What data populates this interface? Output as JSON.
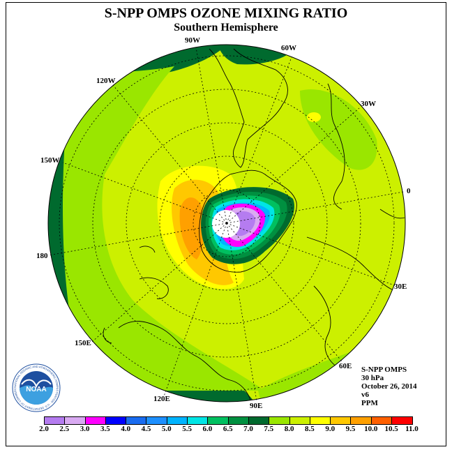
{
  "title": "S-NPP OMPS OZONE MIXING RATIO",
  "subtitle": "Southern Hemisphere",
  "longitude_labels": [
    "90W",
    "60W",
    "120W",
    "30W",
    "150W",
    "0",
    "180",
    "30E",
    "150E",
    "60E",
    "120E",
    "90E"
  ],
  "info_lines": [
    "S-NPP OMPS",
    "30 hPa",
    "October 26, 2014",
    "v6",
    "PPM"
  ],
  "colorbar": {
    "ticks": [
      "2.0",
      "2.5",
      "3.0",
      "3.5",
      "4.0",
      "4.5",
      "5.0",
      "5.5",
      "6.0",
      "6.5",
      "7.0",
      "7.5",
      "8.0",
      "8.5",
      "9.0",
      "9.5",
      "10.0",
      "10.5",
      "11.0"
    ],
    "colors": [
      "#b57cf0",
      "#d9aaf2",
      "#ff00ff",
      "#0000ff",
      "#1a6cf0",
      "#1e90ff",
      "#00b4ff",
      "#00e5e5",
      "#00c060",
      "#009040",
      "#006a2e",
      "#9ae600",
      "#ccf000",
      "#ffff00",
      "#ffc800",
      "#ffa000",
      "#ff6000",
      "#ff0000",
      "#8b4513"
    ]
  },
  "logo_text": "NOAA",
  "logo_ring_text": "NATIONAL OCEANIC AND ATMOSPHERIC ADMINISTRATION · U.S. DEPARTMENT OF COMMERCE"
}
